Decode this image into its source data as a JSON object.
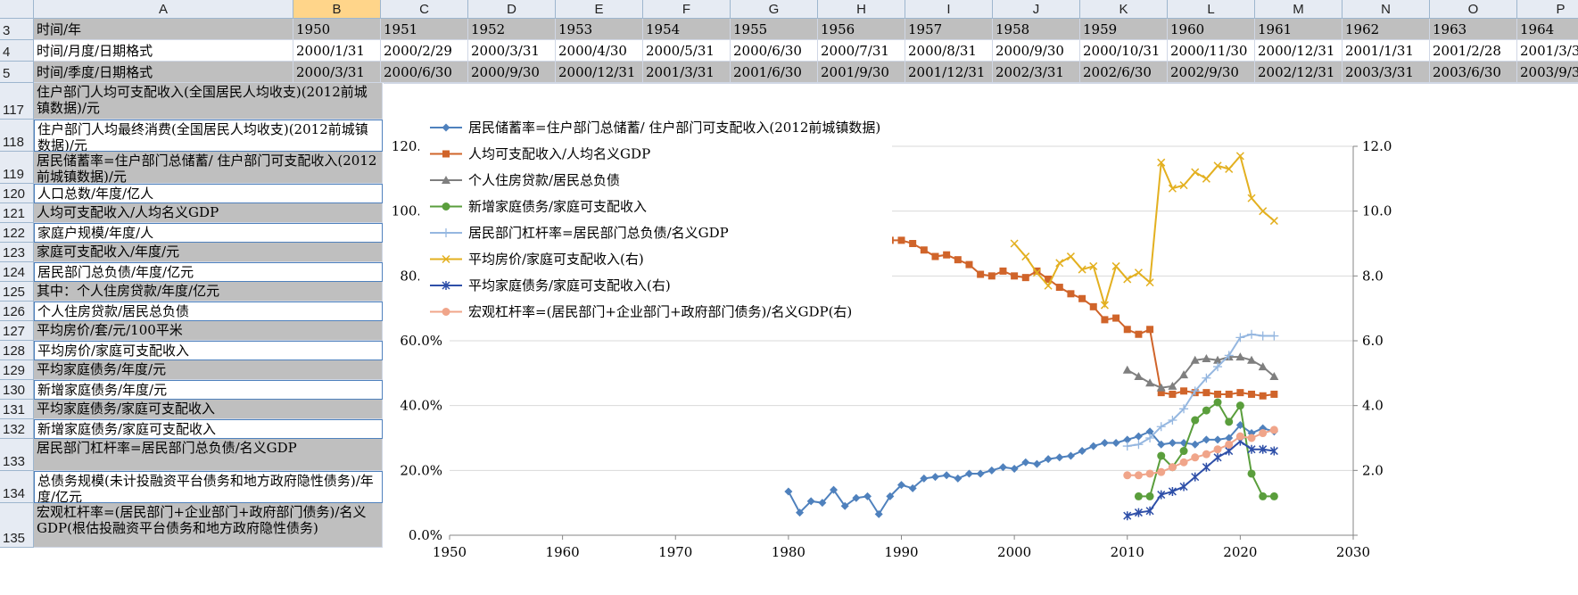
{
  "columns": [
    "A",
    "B",
    "C",
    "D",
    "E",
    "F",
    "G",
    "H",
    "I",
    "J",
    "K",
    "L",
    "M",
    "N",
    "O",
    "P"
  ],
  "rows": [
    {
      "num": "3",
      "label": "时间/年",
      "gray": true,
      "values": [
        "1950",
        "1951",
        "1952",
        "1953",
        "1954",
        "1955",
        "1956",
        "1957",
        "1958",
        "1959",
        "1960",
        "1961",
        "1962",
        "1963",
        "1964"
      ]
    },
    {
      "num": "4",
      "label": "时间/月度/日期格式",
      "gray": false,
      "values": [
        "2000/1/31",
        "2000/2/29",
        "2000/3/31",
        "2000/4/30",
        "2000/5/31",
        "2000/6/30",
        "2000/7/31",
        "2000/8/31",
        "2000/9/30",
        "2000/10/31",
        "2000/11/30",
        "2000/12/31",
        "2001/1/31",
        "2001/2/28",
        "2001/3/31"
      ]
    },
    {
      "num": "5",
      "label": "时间/季度/日期格式",
      "gray": true,
      "values": [
        "2000/3/31",
        "2000/6/30",
        "2000/9/30",
        "2000/12/31",
        "2001/3/31",
        "2001/6/30",
        "2001/9/30",
        "2001/12/31",
        "2002/3/31",
        "2002/6/30",
        "2002/9/30",
        "2002/12/31",
        "2003/3/31",
        "2003/6/30",
        "2003/9/30"
      ]
    }
  ],
  "label_rows": [
    {
      "num": "117",
      "label": "住户部门人均可支配收入(全国居民人均收支)(2012前城镇数据)/元",
      "gray": true,
      "h": 41
    },
    {
      "num": "118",
      "label": "住户部门人均最终消费(全国居民人均收支)(2012前城镇数据)/元",
      "gray": false,
      "h": 36
    },
    {
      "num": "119",
      "label": "居民储蓄率=住户部门总储蓄/ 住户部门可支配收入(2012前城镇数据)/元",
      "gray": true,
      "h": 36
    },
    {
      "num": "120",
      "label": "人口总数/年度/亿人",
      "gray": false,
      "h": 22
    },
    {
      "num": "121",
      "label": "人均可支配收入/人均名义GDP",
      "gray": true,
      "h": 22
    },
    {
      "num": "122",
      "label": "家庭户规模/年度/人",
      "gray": false,
      "h": 22
    },
    {
      "num": "123",
      "label": "家庭可支配收入/年度/元",
      "gray": true,
      "h": 22
    },
    {
      "num": "124",
      "label": "居民部门总负债/年度/亿元",
      "gray": false,
      "h": 22
    },
    {
      "num": "125",
      "label": "其中：个人住房贷款/年度/亿元",
      "gray": true,
      "h": 22
    },
    {
      "num": "126",
      "label": "个人住房贷款/居民总负债",
      "gray": false,
      "h": 22
    },
    {
      "num": "127",
      "label": "平均房价/套/元/100平米",
      "gray": true,
      "h": 22
    },
    {
      "num": "128",
      "label": "平均房价/家庭可支配收入",
      "gray": false,
      "h": 22
    },
    {
      "num": "129",
      "label": "平均家庭债务/年度/元",
      "gray": true,
      "h": 22
    },
    {
      "num": "130",
      "label": "新增家庭债务/年度/元",
      "gray": false,
      "h": 22
    },
    {
      "num": "131",
      "label": "平均家庭债务/家庭可支配收入",
      "gray": true,
      "h": 22
    },
    {
      "num": "132",
      "label": "新增家庭债务/家庭可支配收入",
      "gray": false,
      "h": 22
    },
    {
      "num": "133",
      "label": "居民部门杠杆率=居民部门总负债/名义GDP",
      "gray": true,
      "h": 36
    },
    {
      "num": "134",
      "label": "总债务规模(未计投融资平台债务和地方政府隐性债务)/年度/亿元",
      "gray": false,
      "h": 36
    },
    {
      "num": "135",
      "label": "宏观杠杆率=(居民部门+企业部门+政府部门债务)/名义GDP(根估投融资平台债务和地方政府隐性债务)",
      "gray": true,
      "h": 50
    }
  ],
  "chart_data": {
    "type": "line",
    "x_ticks": [
      "1950",
      "1960",
      "1970",
      "1980",
      "1990",
      "2000",
      "2010",
      "2020",
      "2030"
    ],
    "xlim": [
      1950,
      2030
    ],
    "y_left_ticks": [
      "0.0%",
      "20.0%",
      "40.0%",
      "60.0%",
      "80.0%",
      "100.0%",
      "120.0%"
    ],
    "ylim_left": [
      0,
      120
    ],
    "y_right_ticks": [
      "2.0",
      "4.0",
      "6.0",
      "8.0",
      "10.0",
      "12.0"
    ],
    "ylim_right": [
      0,
      12
    ],
    "series": [
      {
        "name": "居民储蓄率=住户部门总储蓄/ 住户部门可支配收入(2012前城镇数据)",
        "color": "#4f81bd",
        "marker": "diamond",
        "axis": "left",
        "x": [
          1980,
          1981,
          1982,
          1983,
          1984,
          1985,
          1986,
          1987,
          1988,
          1989,
          1990,
          1991,
          1992,
          1993,
          1994,
          1995,
          1996,
          1997,
          1998,
          1999,
          2000,
          2001,
          2002,
          2003,
          2004,
          2005,
          2006,
          2007,
          2008,
          2009,
          2010,
          2011,
          2012,
          2013,
          2014,
          2015,
          2016,
          2017,
          2018,
          2019,
          2020,
          2021,
          2022,
          2023
        ],
        "y": [
          13.5,
          7,
          10.5,
          10,
          14,
          9,
          11.5,
          12,
          6.5,
          12,
          15.5,
          14.5,
          17.5,
          18,
          18.5,
          17.5,
          19,
          19,
          20,
          21,
          20.5,
          22.5,
          22,
          23.5,
          24,
          24.5,
          26,
          27.5,
          28.5,
          28.5,
          29.5,
          30.5,
          32,
          28,
          28.5,
          28.5,
          28,
          29.5,
          29.5,
          30,
          34,
          31.5,
          33,
          32
        ]
      },
      {
        "name": "人均可支配收入/人均名义GDP",
        "color": "#d0642a",
        "marker": "square",
        "axis": "left",
        "x": [
          1980,
          1981,
          1982,
          1983,
          1984,
          1985,
          1986,
          1987,
          1988,
          1989,
          1990,
          1991,
          1992,
          1993,
          1994,
          1995,
          1996,
          1997,
          1998,
          1999,
          2000,
          2001,
          2002,
          2003,
          2004,
          2005,
          2006,
          2007,
          2008,
          2009,
          2010,
          2011,
          2012,
          2013,
          2014,
          2015,
          2016,
          2017,
          2018,
          2019,
          2020,
          2021,
          2022,
          2023
        ],
        "y": [
          103,
          100,
          100,
          97,
          94,
          86,
          93.5,
          91,
          86.5,
          91,
          91,
          90,
          88,
          86,
          86.5,
          85,
          83.5,
          80.5,
          80,
          81.5,
          80,
          79.5,
          81.5,
          79,
          76.5,
          74.5,
          73,
          70.5,
          66.5,
          67,
          63.5,
          62,
          63.5,
          44,
          43.5,
          44.5,
          44,
          44,
          43.5,
          43.5,
          44,
          43.5,
          43,
          43.5
        ]
      },
      {
        "name": "个人住房贷款/居民总负债",
        "color": "#7f7f7f",
        "marker": "triangle",
        "axis": "left",
        "x": [
          2010,
          2011,
          2012,
          2013,
          2014,
          2015,
          2016,
          2017,
          2018,
          2019,
          2020,
          2021,
          2022,
          2023
        ],
        "y": [
          51,
          49,
          47,
          45.5,
          46,
          49.5,
          54,
          54.5,
          54,
          55,
          55,
          54,
          52,
          49
        ]
      },
      {
        "name": "新增家庭债务/家庭可支配收入",
        "color": "#5a9e3c",
        "marker": "circle",
        "axis": "left",
        "x": [
          2011,
          2012,
          2013,
          2014,
          2015,
          2016,
          2017,
          2018,
          2019,
          2020,
          2021,
          2022,
          2023
        ],
        "y": [
          12,
          12,
          24.5,
          21,
          26,
          35.5,
          38.5,
          41,
          35,
          40,
          19,
          12,
          12
        ]
      },
      {
        "name": "居民部门杠杆率=居民部门总负债/名义GDP",
        "color": "#95b7e0",
        "marker": "plus",
        "axis": "left",
        "x": [
          2010,
          2011,
          2012,
          2013,
          2014,
          2015,
          2016,
          2017,
          2018,
          2019,
          2020,
          2021,
          2022,
          2023
        ],
        "y": [
          27.5,
          28,
          30,
          33.5,
          35.5,
          39,
          44.5,
          48.5,
          52,
          55.5,
          61,
          62,
          61.5,
          61.5
        ]
      },
      {
        "name": "平均房价/家庭可支配收入(右)",
        "color": "#e3b020",
        "marker": "x",
        "axis": "right",
        "x": [
          2000,
          2001,
          2002,
          2003,
          2004,
          2005,
          2006,
          2007,
          2008,
          2009,
          2010,
          2011,
          2012,
          2013,
          2014,
          2015,
          2016,
          2017,
          2018,
          2019,
          2020,
          2021,
          2022,
          2023
        ],
        "y": [
          9.0,
          8.6,
          8.1,
          7.7,
          8.4,
          8.6,
          8.2,
          8.3,
          7.1,
          8.3,
          7.9,
          8.1,
          7.8,
          11.5,
          10.7,
          10.8,
          11.2,
          11.0,
          11.4,
          11.3,
          11.7,
          10.4,
          10.0,
          9.7
        ]
      },
      {
        "name": "平均家庭债务/家庭可支配收入(右)",
        "color": "#2e4fa8",
        "marker": "asterisk",
        "axis": "right",
        "x": [
          2010,
          2011,
          2012,
          2013,
          2014,
          2015,
          2016,
          2017,
          2018,
          2019,
          2020,
          2021,
          2022,
          2023
        ],
        "y": [
          0.6,
          0.7,
          0.75,
          1.25,
          1.35,
          1.5,
          1.8,
          2.1,
          2.4,
          2.6,
          2.9,
          2.65,
          2.65,
          2.6
        ]
      },
      {
        "name": "宏观杠杆率=(居民部门+企业部门+政府部门债务)/名义GDP(右)",
        "color": "#f0a58a",
        "marker": "circle",
        "axis": "right",
        "x": [
          2010,
          2011,
          2012,
          2013,
          2014,
          2015,
          2016,
          2017,
          2018,
          2019,
          2020,
          2021,
          2022,
          2023
        ],
        "y": [
          1.85,
          1.85,
          1.9,
          1.95,
          2.1,
          2.25,
          2.4,
          2.5,
          2.65,
          2.8,
          3.05,
          3.0,
          3.15,
          3.25
        ]
      }
    ]
  }
}
